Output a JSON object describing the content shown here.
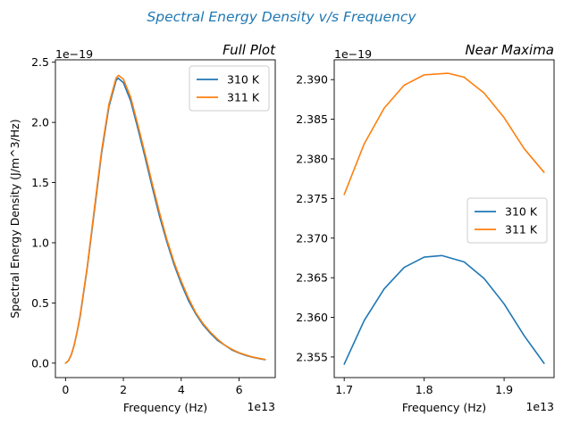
{
  "suptitle": "Spectral Energy Density v/s Frequency",
  "suptitle_color": "#1f77b4",
  "colors": {
    "310 K": "#1f77b4",
    "311 K": "#ff7f0e"
  },
  "chart_data": [
    {
      "type": "line",
      "title": "Full Plot",
      "xlabel": "Frequency (Hz)",
      "ylabel": "Spectral Energy Density (J/m^3/Hz)",
      "x_offset_text": "1e13",
      "y_offset_text": "1e−19",
      "xlim": [
        -0.35,
        7.25
      ],
      "ylim": [
        -0.12,
        2.52
      ],
      "xticks": [
        0,
        2,
        4,
        6
      ],
      "xtick_labels": [
        "0",
        "2",
        "4",
        "6"
      ],
      "yticks": [
        0.0,
        0.5,
        1.0,
        1.5,
        2.0,
        2.5
      ],
      "ytick_labels": [
        "0.0",
        "0.5",
        "1.0",
        "1.5",
        "2.0",
        "2.5"
      ],
      "legend": "top-right",
      "series": [
        {
          "name": "310 K",
          "color": "#1f77b4",
          "x": [
            0,
            0.1,
            0.2,
            0.3,
            0.4,
            0.5,
            0.75,
            1.0,
            1.25,
            1.5,
            1.75,
            1.82,
            2.0,
            2.25,
            2.5,
            2.75,
            3.0,
            3.25,
            3.5,
            3.75,
            4.0,
            4.25,
            4.5,
            4.75,
            5.0,
            5.25,
            5.5,
            5.75,
            6.0,
            6.25,
            6.5,
            6.75,
            6.9
          ],
          "y": [
            0.0,
            0.02,
            0.07,
            0.15,
            0.26,
            0.38,
            0.79,
            1.27,
            1.75,
            2.13,
            2.35,
            2.368,
            2.33,
            2.18,
            1.95,
            1.71,
            1.46,
            1.22,
            1.01,
            0.82,
            0.66,
            0.52,
            0.41,
            0.32,
            0.25,
            0.19,
            0.15,
            0.11,
            0.084,
            0.063,
            0.047,
            0.035,
            0.029
          ]
        },
        {
          "name": "311 K",
          "color": "#ff7f0e",
          "x": [
            0,
            0.1,
            0.2,
            0.3,
            0.4,
            0.5,
            0.75,
            1.0,
            1.25,
            1.5,
            1.75,
            1.83,
            2.0,
            2.25,
            2.5,
            2.75,
            3.0,
            3.25,
            3.5,
            3.75,
            4.0,
            4.25,
            4.5,
            4.75,
            5.0,
            5.25,
            5.5,
            5.75,
            6.0,
            6.25,
            6.5,
            6.75,
            6.9
          ],
          "y": [
            0.0,
            0.02,
            0.07,
            0.15,
            0.26,
            0.39,
            0.8,
            1.29,
            1.77,
            2.15,
            2.37,
            2.391,
            2.36,
            2.21,
            1.98,
            1.74,
            1.49,
            1.25,
            1.03,
            0.84,
            0.68,
            0.54,
            0.42,
            0.33,
            0.26,
            0.2,
            0.15,
            0.115,
            0.087,
            0.066,
            0.049,
            0.037,
            0.031
          ]
        }
      ]
    },
    {
      "type": "line",
      "title": "Near Maxima",
      "xlabel": "Frequency (Hz)",
      "ylabel": "",
      "x_offset_text": "1e13",
      "y_offset_text": "1e−19",
      "xlim": [
        1.6875,
        1.9625
      ],
      "ylim": [
        2.3524,
        2.3925
      ],
      "xticks": [
        1.7,
        1.8,
        1.9
      ],
      "xtick_labels": [
        "1.7",
        "1.8",
        "1.9"
      ],
      "yticks": [
        2.355,
        2.36,
        2.365,
        2.37,
        2.375,
        2.38,
        2.385,
        2.39
      ],
      "ytick_labels": [
        "2.355",
        "2.360",
        "2.365",
        "2.370",
        "2.375",
        "2.380",
        "2.385",
        "2.390"
      ],
      "legend": "center-right",
      "series": [
        {
          "name": "310 K",
          "color": "#1f77b4",
          "x": [
            1.7,
            1.725,
            1.75,
            1.775,
            1.8,
            1.822,
            1.85,
            1.875,
            1.9,
            1.925,
            1.95
          ],
          "y": [
            2.3541,
            2.3596,
            2.3636,
            2.3663,
            2.3676,
            2.3678,
            2.367,
            2.3649,
            2.3617,
            2.3577,
            2.3542
          ]
        },
        {
          "name": "311 K",
          "color": "#ff7f0e",
          "x": [
            1.7,
            1.725,
            1.75,
            1.775,
            1.8,
            1.83,
            1.85,
            1.875,
            1.9,
            1.925,
            1.95
          ],
          "y": [
            2.3755,
            2.3819,
            2.3864,
            2.3893,
            2.3906,
            2.3908,
            2.3903,
            2.3883,
            2.3852,
            2.3813,
            2.3783
          ]
        }
      ]
    }
  ]
}
